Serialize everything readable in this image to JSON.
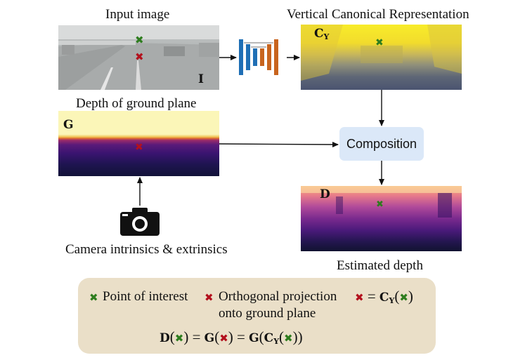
{
  "captions": {
    "input": "Input image",
    "vcr": "Vertical Canonical Representation",
    "ground": "Depth of ground plane",
    "camera": "Camera intrinsics & extrinsics",
    "estimated": "Estimated depth"
  },
  "panel_labels": {
    "input": "I",
    "vcr": "C",
    "vcr_sub": "Y",
    "ground": "G",
    "depth": "D"
  },
  "composition_label": "Composition",
  "legend": {
    "point_of_interest": "Point of interest",
    "ortho_line1": "Orthogonal projection",
    "ortho_line2": "onto ground plane"
  },
  "colors": {
    "green_mark": "#2e7d1e",
    "red_mark": "#b3101d",
    "composition_bg": "#dbe8f8",
    "legend_bg": "#eadfc8",
    "network_blue": "#1f6fb5",
    "network_orange": "#c8641e"
  },
  "icons": [
    "cross-mark-icon",
    "camera-icon",
    "network-icon"
  ]
}
